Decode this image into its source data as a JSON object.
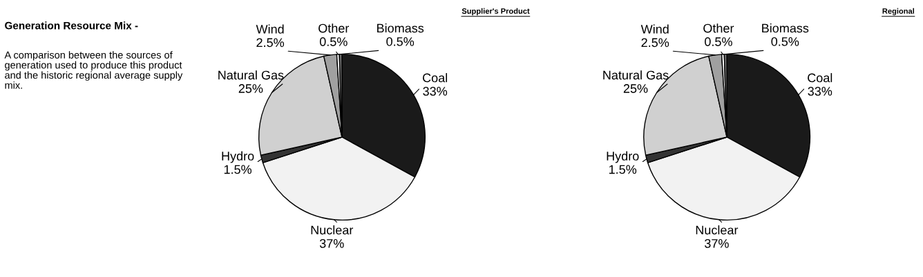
{
  "chart_data": [
    {
      "type": "other",
      "title": "Generation Resource Mix -",
      "annotations": [
        "A comparison between the sources of generation used to produce this product and the historic regional average supply mix."
      ]
    },
    {
      "type": "pie",
      "title": "Supplier's Product",
      "categories": [
        "Coal",
        "Nuclear",
        "Hydro",
        "Natural Gas",
        "Wind",
        "Other",
        "Biomass"
      ],
      "values": [
        33,
        37,
        1.5,
        25,
        2.5,
        0.5,
        0.5
      ],
      "value_labels": [
        "33%",
        "37%",
        "1.5%",
        "25%",
        "2.5%",
        "0.5%",
        "0.5%"
      ],
      "colors": [
        "#1a1a1a",
        "#f2f2f2",
        "#333333",
        "#d0d0d0",
        "#a0a0a0",
        "#ffffff",
        "#707070"
      ]
    },
    {
      "type": "pie",
      "title": "Regional",
      "categories": [
        "Coal",
        "Nuclear",
        "Hydro",
        "Natural Gas",
        "Wind",
        "Other",
        "Biomass"
      ],
      "values": [
        33,
        37,
        1.5,
        25,
        2.5,
        0.5,
        0.5
      ],
      "value_labels": [
        "33%",
        "37%",
        "1.5%",
        "25%",
        "2.5%",
        "0.5%",
        "0.5%"
      ],
      "colors": [
        "#1a1a1a",
        "#f2f2f2",
        "#333333",
        "#d0d0d0",
        "#a0a0a0",
        "#ffffff",
        "#707070"
      ]
    }
  ]
}
